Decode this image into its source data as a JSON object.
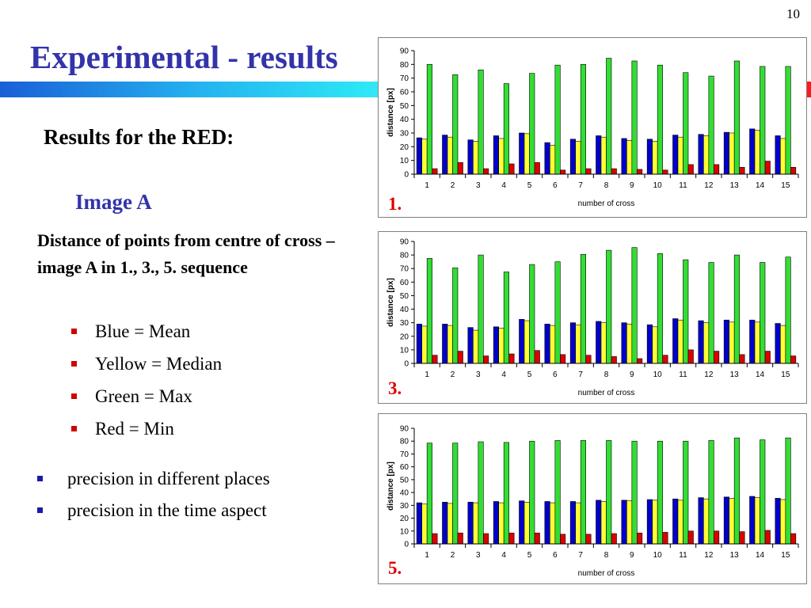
{
  "page": {
    "number": "10"
  },
  "slide": {
    "title": "Experimental - results",
    "subtitle": "Results for the RED:",
    "image_label": "Image A",
    "description": "Distance of points from centre of cross – image A in 1., 3., 5. sequence",
    "legend": [
      {
        "label": "Blue = Mean"
      },
      {
        "label": "Yellow = Median"
      },
      {
        "label": "Green = Max"
      },
      {
        "label": "Red = Min"
      }
    ],
    "notes": [
      {
        "text": "precision in different places"
      },
      {
        "text": "precision in the time aspect"
      }
    ]
  },
  "colors": {
    "title": "#3333aa",
    "mean": "#0000cc",
    "median": "#ffff33",
    "max": "#33dd33",
    "min": "#dd0000",
    "chart_number": "#e00000"
  },
  "chart_data": [
    {
      "type": "bar",
      "label": "1.",
      "xlabel": "number of cross",
      "ylabel": "distance [px]",
      "ylim": [
        0,
        90
      ],
      "yticks": [
        0,
        10,
        20,
        30,
        40,
        50,
        60,
        70,
        80,
        90
      ],
      "categories": [
        "1",
        "2",
        "3",
        "4",
        "5",
        "6",
        "7",
        "8",
        "9",
        "10",
        "11",
        "12",
        "13",
        "14",
        "15"
      ],
      "series": [
        {
          "key": "mean",
          "values": [
            26.5,
            28.5,
            25,
            28,
            30,
            23,
            25.5,
            28,
            26,
            25.5,
            28.5,
            29,
            30.5,
            33,
            28
          ]
        },
        {
          "key": "median",
          "values": [
            25.5,
            27,
            24,
            26,
            29.5,
            21,
            24,
            27,
            24.5,
            24,
            27,
            28,
            30,
            32,
            26
          ]
        },
        {
          "key": "max",
          "values": [
            80,
            72.5,
            76,
            66,
            73.5,
            79.5,
            80,
            84.5,
            82.5,
            79.5,
            74,
            71.5,
            82.5,
            78.5,
            78.5
          ]
        },
        {
          "key": "min",
          "values": [
            4,
            8.5,
            4,
            7.5,
            8.5,
            3,
            4,
            4,
            3.5,
            3,
            7,
            7,
            5,
            9.5,
            5
          ]
        }
      ]
    },
    {
      "type": "bar",
      "label": "3.",
      "xlabel": "number of cross",
      "ylabel": "distance [px]",
      "ylim": [
        0,
        90
      ],
      "yticks": [
        0,
        10,
        20,
        30,
        40,
        50,
        60,
        70,
        80,
        90
      ],
      "categories": [
        "1",
        "2",
        "3",
        "4",
        "5",
        "6",
        "7",
        "8",
        "9",
        "10",
        "11",
        "12",
        "13",
        "14",
        "15"
      ],
      "series": [
        {
          "key": "mean",
          "values": [
            29,
            29,
            26.5,
            27,
            32.5,
            29,
            30,
            31,
            30,
            28.5,
            33,
            31.5,
            32,
            32,
            29.5
          ]
        },
        {
          "key": "median",
          "values": [
            27.5,
            28,
            24.5,
            26,
            31.5,
            28,
            28.5,
            30,
            29,
            27,
            32,
            30,
            30.5,
            30.5,
            28
          ]
        },
        {
          "key": "max",
          "values": [
            77.5,
            70.5,
            80,
            67.5,
            73,
            75,
            80.5,
            83.5,
            85.5,
            81,
            76.5,
            74.5,
            80,
            74.5,
            78.5
          ]
        },
        {
          "key": "min",
          "values": [
            6,
            9,
            5.5,
            7,
            9.5,
            6.5,
            6,
            5,
            3.5,
            6,
            10,
            9,
            6.5,
            9,
            5.5
          ]
        }
      ]
    },
    {
      "type": "bar",
      "label": "5.",
      "xlabel": "number of cross",
      "ylabel": "distance [px]",
      "ylim": [
        0,
        90
      ],
      "yticks": [
        0,
        10,
        20,
        30,
        40,
        50,
        60,
        70,
        80,
        90
      ],
      "categories": [
        "1",
        "2",
        "3",
        "4",
        "5",
        "6",
        "7",
        "8",
        "9",
        "10",
        "11",
        "12",
        "13",
        "14",
        "15"
      ],
      "series": [
        {
          "key": "mean",
          "values": [
            32,
            32.5,
            32.5,
            33,
            33.5,
            33,
            33,
            34,
            34,
            34.5,
            35,
            36,
            36.5,
            37,
            35.5
          ]
        },
        {
          "key": "median",
          "values": [
            31,
            31.5,
            32,
            32,
            32.5,
            32,
            32,
            33,
            33.5,
            34,
            34,
            35,
            35.5,
            36,
            34.5
          ]
        },
        {
          "key": "max",
          "values": [
            78.5,
            78.5,
            79.5,
            79,
            80,
            80.5,
            80.5,
            80.5,
            80,
            80,
            80,
            80.5,
            82.5,
            81,
            82.5
          ]
        },
        {
          "key": "min",
          "values": [
            8,
            8.5,
            8,
            8.5,
            8.5,
            7.5,
            7.5,
            8,
            8.5,
            9,
            10,
            10,
            9.5,
            10.5,
            8
          ]
        }
      ]
    }
  ]
}
